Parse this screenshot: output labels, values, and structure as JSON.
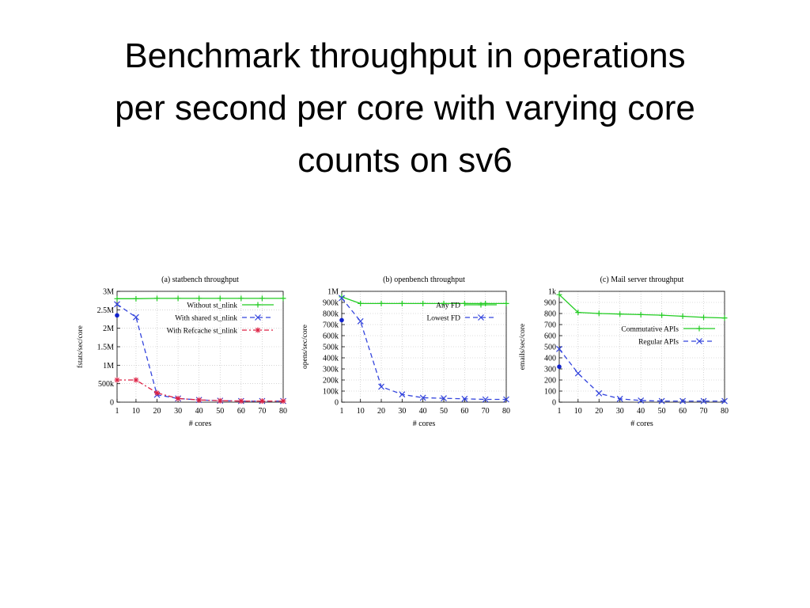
{
  "slide": {
    "title_lines": [
      "Benchmark throughput in operations",
      "per second per core with varying core",
      "counts on sv6"
    ]
  },
  "chart_data": [
    {
      "type": "line",
      "title": "(a) statbench throughput",
      "xlabel": "# cores",
      "ylabel": "fstats/sec/core",
      "x_ticks": [
        1,
        10,
        20,
        30,
        40,
        50,
        60,
        70,
        80
      ],
      "x_tick_labels": [
        "1",
        "10",
        "20",
        "30",
        "40",
        "50",
        "60",
        "70",
        "80"
      ],
      "xlim": [
        1,
        80
      ],
      "y_ticks": [
        0,
        500000,
        1000000,
        1500000,
        2000000,
        2500000,
        3000000
      ],
      "y_tick_labels": [
        "0",
        "500k",
        "1M",
        "1.5M",
        "2M",
        "2.5M",
        "3M"
      ],
      "ylim": [
        0,
        3000000
      ],
      "grid": true,
      "legend_position": "top-right",
      "series": [
        {
          "name": "Without st_nlink",
          "color": "#22cc22",
          "line": "solid",
          "marker": "plus",
          "x": [
            1,
            10,
            20,
            30,
            40,
            50,
            60,
            70,
            80
          ],
          "y": [
            2800000,
            2800000,
            2810000,
            2810000,
            2810000,
            2810000,
            2810000,
            2810000,
            2810000
          ]
        },
        {
          "name": "With shared st_nlink",
          "color": "#3344dd",
          "line": "dashed",
          "marker": "x",
          "x": [
            1,
            10,
            20,
            30,
            40,
            50,
            60,
            70,
            80
          ],
          "y": [
            2650000,
            2300000,
            200000,
            100000,
            60000,
            40000,
            30000,
            30000,
            30000
          ]
        },
        {
          "name": "With Refcache st_nlink",
          "color": "#dd2244",
          "line": "dashdot",
          "marker": "star",
          "x": [
            1,
            10,
            20,
            30,
            40,
            50,
            60,
            70,
            80
          ],
          "y": [
            600000,
            600000,
            250000,
            100000,
            60000,
            40000,
            30000,
            30000,
            30000
          ]
        }
      ],
      "extra_points": [
        {
          "x": 1,
          "y": 2350000,
          "color": "#1122cc"
        }
      ]
    },
    {
      "type": "line",
      "title": "(b) openbench throughput",
      "xlabel": "# cores",
      "ylabel": "opens/sec/core",
      "x_ticks": [
        1,
        10,
        20,
        30,
        40,
        50,
        60,
        70,
        80
      ],
      "x_tick_labels": [
        "1",
        "10",
        "20",
        "30",
        "40",
        "50",
        "60",
        "70",
        "80"
      ],
      "xlim": [
        1,
        80
      ],
      "y_ticks": [
        0,
        100000,
        200000,
        300000,
        400000,
        500000,
        600000,
        700000,
        800000,
        900000,
        1000000
      ],
      "y_tick_labels": [
        "0",
        "100k",
        "200k",
        "300k",
        "400k",
        "500k",
        "600k",
        "700k",
        "800k",
        "900k",
        "1M"
      ],
      "ylim": [
        0,
        1000000
      ],
      "grid": true,
      "legend_position": "top-right",
      "series": [
        {
          "name": "Any FD",
          "color": "#22cc22",
          "line": "solid",
          "marker": "plus",
          "x": [
            1,
            10,
            20,
            30,
            40,
            50,
            60,
            70,
            80
          ],
          "y": [
            950000,
            890000,
            890000,
            890000,
            890000,
            890000,
            890000,
            890000,
            890000
          ]
        },
        {
          "name": "Lowest FD",
          "color": "#3344dd",
          "line": "dashed",
          "marker": "x",
          "x": [
            1,
            10,
            20,
            30,
            40,
            50,
            60,
            70,
            80
          ],
          "y": [
            940000,
            730000,
            140000,
            70000,
            40000,
            35000,
            30000,
            25000,
            25000
          ]
        }
      ],
      "extra_points": [
        {
          "x": 1,
          "y": 740000,
          "color": "#1122cc"
        }
      ]
    },
    {
      "type": "line",
      "title": "(c) Mail server throughput",
      "xlabel": "# cores",
      "ylabel": "emails/sec/core",
      "x_ticks": [
        1,
        10,
        20,
        30,
        40,
        50,
        60,
        70,
        80
      ],
      "x_tick_labels": [
        "1",
        "10",
        "20",
        "30",
        "40",
        "50",
        "60",
        "70",
        "80"
      ],
      "xlim": [
        1,
        80
      ],
      "y_ticks": [
        0,
        100,
        200,
        300,
        400,
        500,
        600,
        700,
        800,
        900,
        1000
      ],
      "y_tick_labels": [
        "0",
        "100",
        "200",
        "300",
        "400",
        "500",
        "600",
        "700",
        "800",
        "900",
        "1k"
      ],
      "ylim": [
        0,
        1000
      ],
      "grid": true,
      "legend_position": "center-right",
      "series": [
        {
          "name": "Commutative APIs",
          "color": "#22cc22",
          "line": "solid",
          "marker": "plus",
          "x": [
            1,
            10,
            20,
            30,
            40,
            50,
            60,
            70,
            80
          ],
          "y": [
            970,
            810,
            800,
            795,
            790,
            785,
            775,
            765,
            760
          ]
        },
        {
          "name": "Regular APIs",
          "color": "#3344dd",
          "line": "dashed",
          "marker": "x",
          "x": [
            1,
            10,
            20,
            30,
            40,
            50,
            60,
            70,
            80
          ],
          "y": [
            480,
            260,
            80,
            30,
            15,
            10,
            10,
            10,
            10
          ]
        }
      ],
      "extra_points": [
        {
          "x": 1,
          "y": 320,
          "color": "#1122cc"
        }
      ]
    }
  ]
}
